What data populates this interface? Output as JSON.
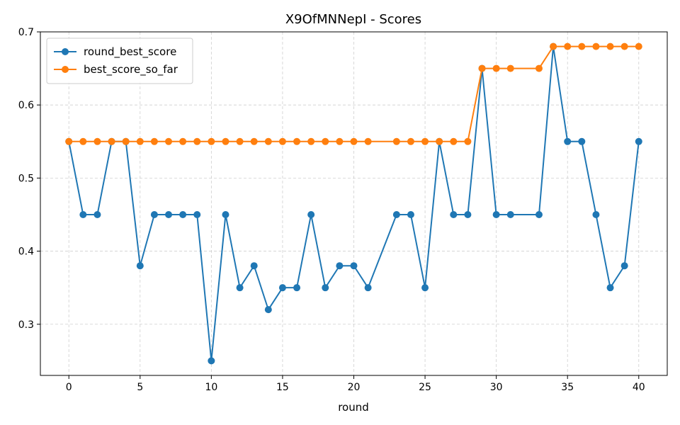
{
  "chart_data": {
    "type": "line",
    "title": "X9OfMNNepI - Scores",
    "xlabel": "round",
    "ylabel": "",
    "xlim": [
      -2,
      42
    ],
    "ylim": [
      0.23,
      0.7
    ],
    "xticks": [
      0,
      5,
      10,
      15,
      20,
      25,
      30,
      35,
      40
    ],
    "yticks": [
      0.3,
      0.4,
      0.5,
      0.6,
      0.7
    ],
    "grid": true,
    "legend_position": "top-left",
    "series": [
      {
        "name": "round_best_score",
        "color": "#1f77b4",
        "x": [
          0,
          1,
          2,
          3,
          4,
          5,
          6,
          7,
          8,
          9,
          10,
          11,
          12,
          13,
          14,
          15,
          16,
          17,
          18,
          19,
          20,
          21,
          23,
          24,
          25,
          26,
          27,
          28,
          29,
          30,
          31,
          33,
          34,
          35,
          36,
          37,
          38,
          39,
          40
        ],
        "y": [
          0.55,
          0.45,
          0.45,
          0.55,
          0.55,
          0.38,
          0.45,
          0.45,
          0.45,
          0.45,
          0.25,
          0.45,
          0.35,
          0.38,
          0.32,
          0.35,
          0.35,
          0.45,
          0.35,
          0.38,
          0.38,
          0.35,
          0.45,
          0.45,
          0.35,
          0.55,
          0.45,
          0.45,
          0.65,
          0.45,
          0.45,
          0.45,
          0.68,
          0.55,
          0.55,
          0.45,
          0.35,
          0.38,
          0.55
        ]
      },
      {
        "name": "best_score_so_far",
        "color": "#ff7f0e",
        "x": [
          0,
          1,
          2,
          3,
          4,
          5,
          6,
          7,
          8,
          9,
          10,
          11,
          12,
          13,
          14,
          15,
          16,
          17,
          18,
          19,
          20,
          21,
          23,
          24,
          25,
          26,
          27,
          28,
          29,
          30,
          31,
          33,
          34,
          35,
          36,
          37,
          38,
          39,
          40
        ],
        "y": [
          0.55,
          0.55,
          0.55,
          0.55,
          0.55,
          0.55,
          0.55,
          0.55,
          0.55,
          0.55,
          0.55,
          0.55,
          0.55,
          0.55,
          0.55,
          0.55,
          0.55,
          0.55,
          0.55,
          0.55,
          0.55,
          0.55,
          0.55,
          0.55,
          0.55,
          0.55,
          0.55,
          0.55,
          0.65,
          0.65,
          0.65,
          0.65,
          0.68,
          0.68,
          0.68,
          0.68,
          0.68,
          0.68,
          0.68
        ]
      }
    ]
  }
}
